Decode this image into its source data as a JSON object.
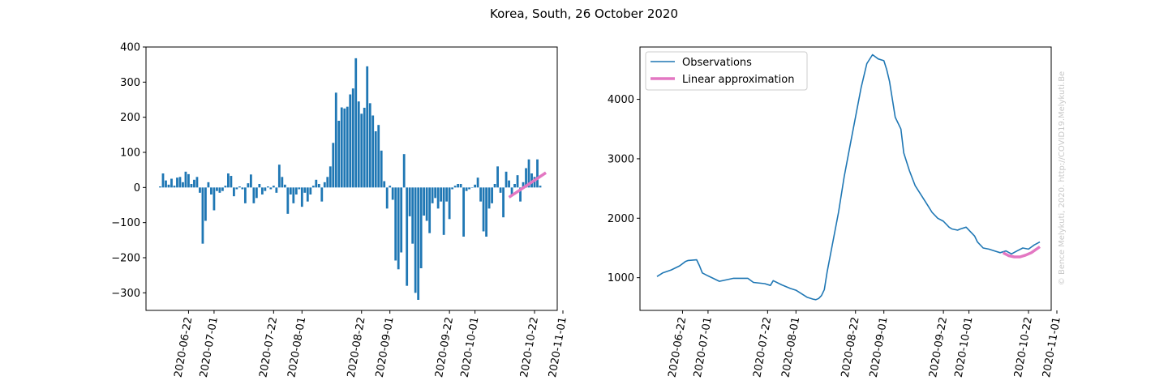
{
  "figure": {
    "title": "Korea, South, 26 October 2020",
    "credit": "© Bence Melykuti, 2020. http://COVID19.Melykuti.Be"
  },
  "colors": {
    "observation": "#1f77b4",
    "approximation": "#e377c2",
    "axes": "#000000",
    "credit": "#c8c8c8"
  },
  "chart_data": [
    {
      "type": "bar",
      "title": "",
      "xlabel": "",
      "ylabel": "",
      "start_date": "2020-06-12",
      "end_date": "2020-10-26",
      "xlim": [
        "2020-06-07",
        "2020-10-30"
      ],
      "ylim": [
        -350,
        400
      ],
      "yticks": [
        400,
        300,
        200,
        100,
        0,
        -100,
        -200,
        -300
      ],
      "ytick_labels": [
        "400",
        "300",
        "200",
        "100",
        "0",
        "−100",
        "−200",
        "−300"
      ],
      "xtick_dates": [
        "2020-06-22",
        "2020-07-01",
        "2020-07-22",
        "2020-08-01",
        "2020-08-22",
        "2020-09-01",
        "2020-09-22",
        "2020-10-01",
        "2020-10-22",
        "2020-11-01"
      ],
      "xtick_labels": [
        "2020-06-22",
        "2020-07-01",
        "2020-07-22",
        "2020-08-01",
        "2020-08-22",
        "2020-09-01",
        "2020-09-22",
        "2020-10-01",
        "2020-10-22",
        "2020-11-01"
      ],
      "values": [
        3,
        40,
        20,
        8,
        25,
        5,
        28,
        30,
        15,
        45,
        38,
        10,
        22,
        30,
        -15,
        -160,
        -95,
        15,
        -20,
        -65,
        -10,
        -15,
        -10,
        5,
        40,
        33,
        -25,
        -5,
        3,
        -5,
        -45,
        12,
        37,
        -45,
        -30,
        10,
        -20,
        -10,
        3,
        -5,
        5,
        -15,
        65,
        30,
        8,
        -75,
        -20,
        -45,
        -20,
        -5,
        -55,
        -15,
        -40,
        -20,
        5,
        22,
        10,
        -40,
        15,
        30,
        60,
        127,
        270,
        190,
        228,
        225,
        230,
        265,
        282,
        368,
        245,
        210,
        227,
        345,
        240,
        205,
        160,
        178,
        105,
        18,
        -60,
        5,
        -35,
        -208,
        -233,
        -185,
        95,
        -280,
        -82,
        -160,
        -300,
        -320,
        -230,
        -80,
        -95,
        -130,
        -45,
        -30,
        -60,
        -40,
        -135,
        -40,
        -90,
        -5,
        5,
        10,
        10,
        -140,
        -10,
        -5,
        0,
        8,
        28,
        -40,
        -125,
        -140,
        -60,
        -45,
        10,
        60,
        -15,
        -85,
        45,
        20,
        -20,
        10,
        35,
        -40,
        15,
        55,
        80,
        40,
        30,
        80,
        5
      ],
      "series": [
        {
          "name": "",
          "role": "observations"
        },
        {
          "name": "",
          "role": "linear-approximation",
          "x": [
            "2020-10-13",
            "2020-10-26"
          ],
          "y": [
            -28,
            42
          ]
        }
      ]
    },
    {
      "type": "line",
      "title": "",
      "xlabel": "",
      "ylabel": "",
      "xlim": [
        "2020-06-07",
        "2020-10-30"
      ],
      "ylim": [
        450,
        4880
      ],
      "yticks": [
        4000,
        3000,
        2000,
        1000
      ],
      "ytick_labels": [
        "4000",
        "3000",
        "2000",
        "1000"
      ],
      "xtick_dates": [
        "2020-06-22",
        "2020-07-01",
        "2020-07-22",
        "2020-08-01",
        "2020-08-22",
        "2020-09-01",
        "2020-09-22",
        "2020-10-01",
        "2020-10-22",
        "2020-11-01"
      ],
      "xtick_labels": [
        "2020-06-22",
        "2020-07-01",
        "2020-07-22",
        "2020-08-01",
        "2020-08-22",
        "2020-09-01",
        "2020-09-22",
        "2020-10-01",
        "2020-10-22",
        "2020-11-01"
      ],
      "legend": {
        "placement": "upper-left",
        "entries": [
          "Observations",
          "Linear approximation"
        ]
      },
      "series": [
        {
          "name": "Observations",
          "x": [
            "2020-06-13",
            "2020-06-15",
            "2020-06-18",
            "2020-06-21",
            "2020-06-23",
            "2020-06-24",
            "2020-06-27",
            "2020-06-28",
            "2020-06-29",
            "2020-07-01",
            "2020-07-05",
            "2020-07-08",
            "2020-07-10",
            "2020-07-15",
            "2020-07-17",
            "2020-07-21",
            "2020-07-23",
            "2020-07-24",
            "2020-07-27",
            "2020-07-30",
            "2020-08-01",
            "2020-08-05",
            "2020-08-07",
            "2020-08-08",
            "2020-08-09",
            "2020-08-10",
            "2020-08-11",
            "2020-08-12",
            "2020-08-14",
            "2020-08-16",
            "2020-08-18",
            "2020-08-20",
            "2020-08-22",
            "2020-08-24",
            "2020-08-26",
            "2020-08-28",
            "2020-08-30",
            "2020-09-01",
            "2020-09-02",
            "2020-09-03",
            "2020-09-04",
            "2020-09-05",
            "2020-09-07",
            "2020-09-08",
            "2020-09-10",
            "2020-09-12",
            "2020-09-14",
            "2020-09-16",
            "2020-09-18",
            "2020-09-20",
            "2020-09-22",
            "2020-09-24",
            "2020-09-25",
            "2020-09-27",
            "2020-09-28",
            "2020-09-30",
            "2020-10-03",
            "2020-10-04",
            "2020-10-06",
            "2020-10-08",
            "2020-10-10",
            "2020-10-12",
            "2020-10-14",
            "2020-10-16",
            "2020-10-18",
            "2020-10-20",
            "2020-10-22",
            "2020-10-24",
            "2020-10-26"
          ],
          "y": [
            1020,
            1080,
            1130,
            1200,
            1270,
            1290,
            1300,
            1200,
            1080,
            1030,
            940,
            970,
            990,
            990,
            920,
            900,
            870,
            950,
            880,
            820,
            790,
            670,
            640,
            630,
            650,
            700,
            800,
            1100,
            1600,
            2100,
            2700,
            3200,
            3700,
            4200,
            4600,
            4750,
            4680,
            4650,
            4500,
            4300,
            4000,
            3700,
            3500,
            3100,
            2800,
            2550,
            2400,
            2250,
            2100,
            2000,
            1950,
            1850,
            1820,
            1800,
            1820,
            1850,
            1700,
            1600,
            1500,
            1480,
            1450,
            1420,
            1450,
            1400,
            1450,
            1500,
            1480,
            1550,
            1600
          ]
        },
        {
          "name": "Linear approximation",
          "x": [
            "2020-10-13",
            "2020-10-15",
            "2020-10-17",
            "2020-10-19",
            "2020-10-21",
            "2020-10-23",
            "2020-10-26"
          ],
          "y": [
            1420,
            1370,
            1350,
            1350,
            1380,
            1420,
            1520
          ]
        }
      ]
    }
  ]
}
